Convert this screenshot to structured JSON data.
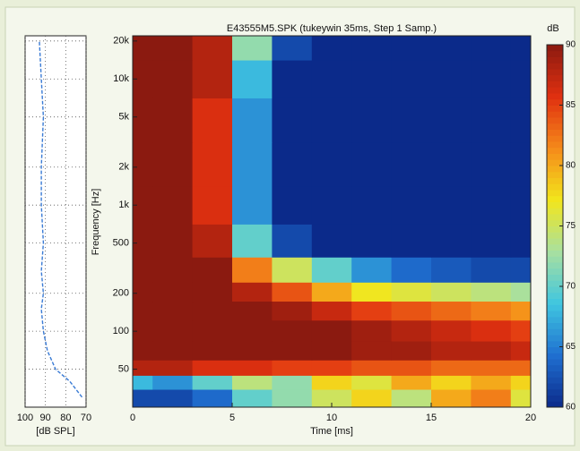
{
  "chart_data": [
    {
      "type": "line",
      "xlabel": "[dB SPL]",
      "xlim": [
        100,
        70
      ],
      "xticks": [
        100,
        90,
        80,
        70
      ],
      "ylim": [
        25,
        22000
      ],
      "yticks": [
        50,
        100,
        200,
        500,
        1000,
        2000,
        5000,
        10000,
        20000
      ],
      "log_y": true,
      "grid": true,
      "color": "#3a7bd5",
      "y": [
        30,
        40,
        50,
        70,
        100,
        150,
        200,
        300,
        500,
        1000,
        2000,
        5000,
        10000,
        20000
      ],
      "values": [
        72,
        78,
        85,
        89,
        91,
        92,
        91,
        92,
        91,
        92,
        92,
        91,
        92,
        93
      ]
    },
    {
      "type": "heatmap",
      "title": "E43555M5.SPK (tukeywin 35ms, Step 1 Samp.)",
      "xlabel": "Time [ms]",
      "ylabel": "Frequency [Hz]",
      "xlim": [
        0,
        20
      ],
      "xticks": [
        0,
        5,
        10,
        15,
        20
      ],
      "ylim": [
        25,
        22000
      ],
      "yticks": [
        50,
        100,
        200,
        500,
        {
          "value": 1000,
          "label": "1k"
        },
        {
          "value": 2000,
          "label": "2k"
        },
        {
          "value": 5000,
          "label": "5k"
        },
        {
          "value": 10000,
          "label": "10k"
        },
        {
          "value": 20000,
          "label": "20k"
        }
      ],
      "log_y": true,
      "x": [
        0,
        2,
        4,
        6,
        8,
        10,
        12,
        14,
        16,
        18,
        20
      ],
      "y": [
        30,
        40,
        50,
        70,
        100,
        150,
        200,
        300,
        500,
        1000,
        2000,
        5000,
        10000,
        20000
      ],
      "values": [
        [
          62,
          62,
          64,
          70,
          72,
          75,
          78,
          74,
          80,
          82,
          76
        ],
        [
          68,
          66,
          70,
          74,
          72,
          78,
          76,
          80,
          78,
          80,
          78
        ],
        [
          88,
          88,
          86,
          86,
          85,
          85,
          84,
          84,
          83,
          83,
          83
        ],
        [
          90,
          90,
          90,
          90,
          90,
          90,
          89,
          89,
          88,
          88,
          87
        ],
        [
          90,
          90,
          90,
          90,
          90,
          90,
          89,
          88,
          87,
          86,
          85
        ],
        [
          90,
          90,
          90,
          90,
          89,
          87,
          85,
          84,
          83,
          82,
          81
        ],
        [
          90,
          90,
          90,
          88,
          84,
          80,
          77,
          76,
          75,
          74,
          73
        ],
        [
          90,
          90,
          90,
          82,
          75,
          70,
          66,
          64,
          63,
          62,
          62
        ],
        [
          90,
          90,
          88,
          70,
          62,
          60,
          60,
          60,
          60,
          60,
          60
        ],
        [
          90,
          90,
          86,
          66,
          60,
          60,
          60,
          60,
          60,
          60,
          60
        ],
        [
          90,
          90,
          86,
          66,
          60,
          60,
          60,
          60,
          60,
          60,
          60
        ],
        [
          90,
          90,
          86,
          66,
          60,
          60,
          60,
          60,
          60,
          60,
          60
        ],
        [
          90,
          90,
          88,
          68,
          60,
          60,
          60,
          60,
          60,
          60,
          60
        ],
        [
          90,
          90,
          88,
          72,
          62,
          60,
          60,
          60,
          60,
          60,
          60
        ]
      ],
      "colorbar": {
        "label": "dB",
        "lim": [
          60,
          90
        ],
        "ticks": [
          60,
          65,
          70,
          75,
          80,
          85,
          90
        ]
      },
      "colormap": [
        "#0b2a8a",
        "#1f6fd0",
        "#3fc6e0",
        "#a8e0a0",
        "#f2e61c",
        "#f58a1a",
        "#e03010",
        "#8b1a10"
      ]
    }
  ]
}
